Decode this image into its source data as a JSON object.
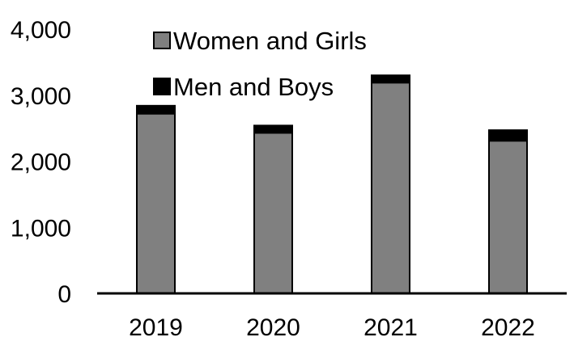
{
  "chart_data": {
    "type": "bar",
    "stacked": true,
    "categories": [
      "2019",
      "2020",
      "2021",
      "2022"
    ],
    "series": [
      {
        "name": "Women and Girls",
        "values": [
          2720,
          2430,
          3190,
          2310
        ],
        "color": "#808080"
      },
      {
        "name": "Men and Boys",
        "values": [
          120,
          110,
          110,
          160
        ],
        "color": "#000000"
      }
    ],
    "ylim": [
      0,
      4000
    ],
    "yticks": [
      0,
      1000,
      2000,
      3000,
      4000
    ],
    "ytick_labels": [
      "0",
      "1,000",
      "2,000",
      "3,000",
      "4,000"
    ],
    "title": "",
    "xlabel": "",
    "ylabel": "",
    "grid": false,
    "legend_position": "top-left"
  }
}
